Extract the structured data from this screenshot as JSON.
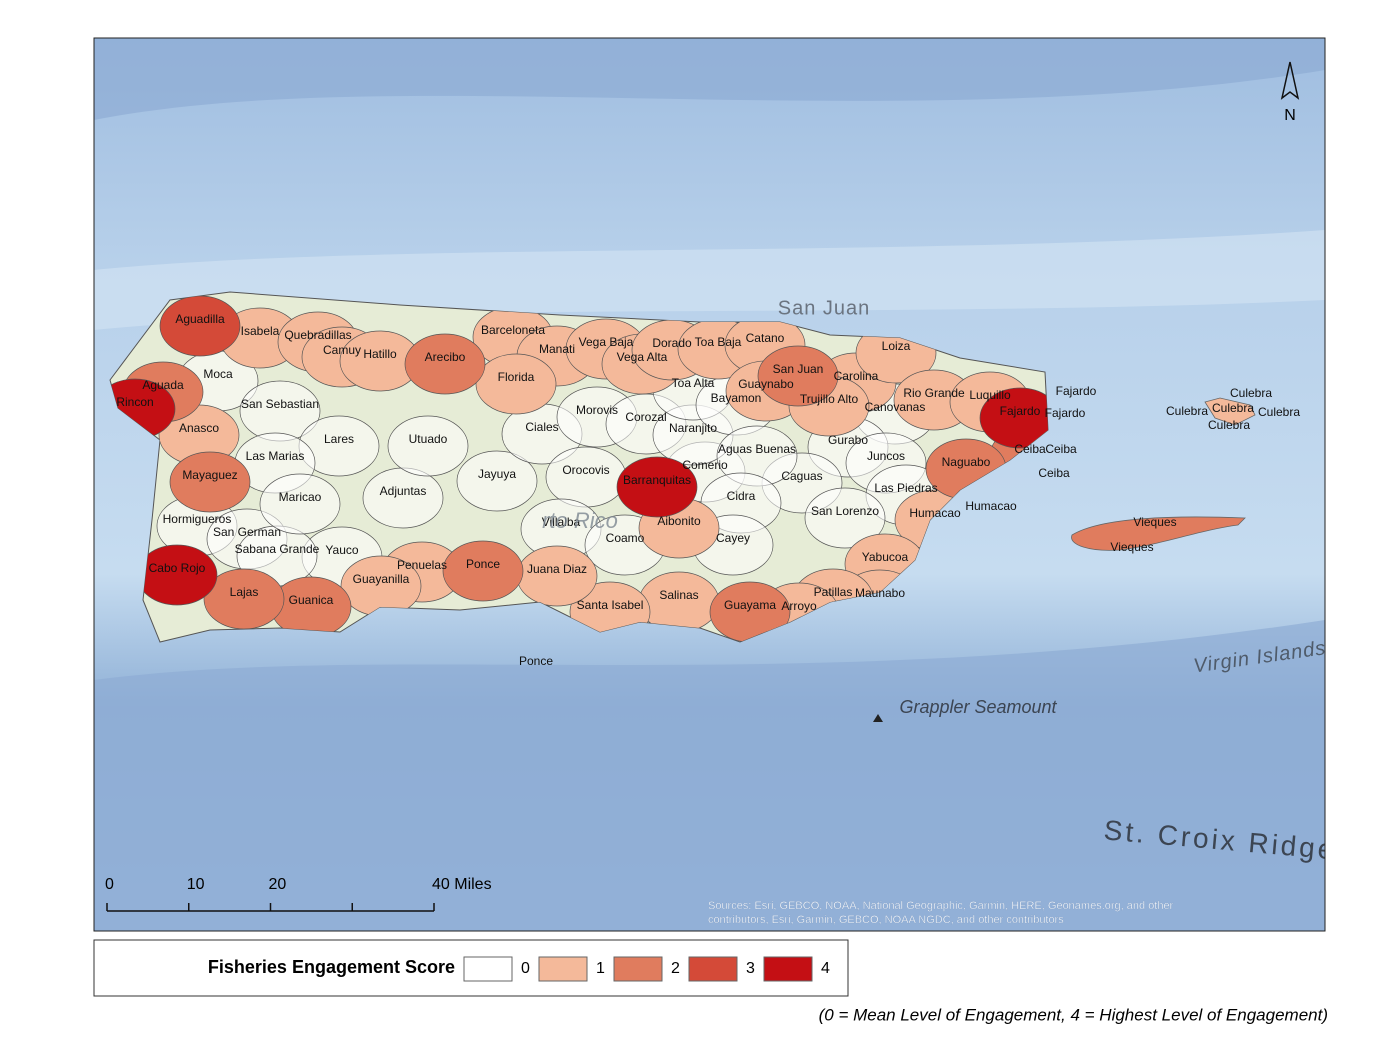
{
  "map": {
    "north_label": "N",
    "municipalities": [
      {
        "name": "Aguadilla",
        "score": 3
      },
      {
        "name": "Isabela",
        "score": 1
      },
      {
        "name": "Quebradillas",
        "score": 1
      },
      {
        "name": "Camuy",
        "score": 1
      },
      {
        "name": "Hatillo",
        "score": 1
      },
      {
        "name": "Arecibo",
        "score": 2
      },
      {
        "name": "Barceloneta",
        "score": 1
      },
      {
        "name": "Manati",
        "score": 1
      },
      {
        "name": "Vega Baja",
        "score": 1
      },
      {
        "name": "Vega Alta",
        "score": 1
      },
      {
        "name": "Dorado",
        "score": 1
      },
      {
        "name": "Toa Baja",
        "score": 1
      },
      {
        "name": "Catano",
        "score": 1
      },
      {
        "name": "San Juan",
        "score": 2
      },
      {
        "name": "Carolina",
        "score": 1
      },
      {
        "name": "Loiza",
        "score": 1
      },
      {
        "name": "Rio Grande",
        "score": 1
      },
      {
        "name": "Luquillo",
        "score": 1
      },
      {
        "name": "Fajardo",
        "score": 4
      },
      {
        "name": "Ceiba",
        "score": 2
      },
      {
        "name": "Naguabo",
        "score": 2
      },
      {
        "name": "Humacao",
        "score": 1
      },
      {
        "name": "Yabucoa",
        "score": 1
      },
      {
        "name": "Maunabo",
        "score": 1
      },
      {
        "name": "Patillas",
        "score": 1
      },
      {
        "name": "Arroyo",
        "score": 1
      },
      {
        "name": "Guayama",
        "score": 2
      },
      {
        "name": "Salinas",
        "score": 1
      },
      {
        "name": "Santa Isabel",
        "score": 1
      },
      {
        "name": "Juana Diaz",
        "score": 1
      },
      {
        "name": "Ponce",
        "score": 2
      },
      {
        "name": "Penuelas",
        "score": 1
      },
      {
        "name": "Guayanilla",
        "score": 1
      },
      {
        "name": "Yauco",
        "score": 0
      },
      {
        "name": "Guanica",
        "score": 2
      },
      {
        "name": "Lajas",
        "score": 2
      },
      {
        "name": "Cabo Rojo",
        "score": 4
      },
      {
        "name": "Hormigueros",
        "score": 0
      },
      {
        "name": "San German",
        "score": 0
      },
      {
        "name": "Sabana Grande",
        "score": 0
      },
      {
        "name": "Mayaguez",
        "score": 2
      },
      {
        "name": "Anasco",
        "score": 1
      },
      {
        "name": "Rincon",
        "score": 4
      },
      {
        "name": "Aguada",
        "score": 2
      },
      {
        "name": "Moca",
        "score": 0
      },
      {
        "name": "San Sebastian",
        "score": 0
      },
      {
        "name": "Lares",
        "score": 0
      },
      {
        "name": "Las Marias",
        "score": 0
      },
      {
        "name": "Maricao",
        "score": 0
      },
      {
        "name": "Adjuntas",
        "score": 0
      },
      {
        "name": "Utuado",
        "score": 0
      },
      {
        "name": "Jayuya",
        "score": 0
      },
      {
        "name": "Ciales",
        "score": 0
      },
      {
        "name": "Florida",
        "score": 1
      },
      {
        "name": "Morovis",
        "score": 0
      },
      {
        "name": "Orocovis",
        "score": 0
      },
      {
        "name": "Villalba",
        "score": 0
      },
      {
        "name": "Coamo",
        "score": 0
      },
      {
        "name": "Barranquitas",
        "score": 4
      },
      {
        "name": "Aibonito",
        "score": 1
      },
      {
        "name": "Comerio",
        "score": 0
      },
      {
        "name": "Corozal",
        "score": 0
      },
      {
        "name": "Naranjito",
        "score": 0
      },
      {
        "name": "Toa Alta",
        "score": 0
      },
      {
        "name": "Bayamon",
        "score": 0
      },
      {
        "name": "Guaynabo",
        "score": 1
      },
      {
        "name": "Trujillo Alto",
        "score": 1
      },
      {
        "name": "Canovanas",
        "score": 0
      },
      {
        "name": "Gurabo",
        "score": 0
      },
      {
        "name": "Juncos",
        "score": 0
      },
      {
        "name": "Las Piedras",
        "score": 0
      },
      {
        "name": "Caguas",
        "score": 0
      },
      {
        "name": "Aguas Buenas",
        "score": 0
      },
      {
        "name": "Cidra",
        "score": 0
      },
      {
        "name": "Cayey",
        "score": 0
      },
      {
        "name": "San Lorenzo",
        "score": 0
      },
      {
        "name": "Vieques",
        "score": 2
      },
      {
        "name": "Culebra",
        "score": 1
      }
    ],
    "place_labels": [
      "Fajardo",
      "Fajardo",
      "Ceiba",
      "Ceiba",
      "Culebra",
      "Culebra",
      "Culebra",
      "Culebra",
      "Vieques",
      "Ponce",
      "Humacao"
    ],
    "basemap_labels": [
      "San Juan",
      "rto Rico",
      "Virgin Islands",
      "Grappler Seamount",
      "St. Croix Ridge"
    ],
    "scale_bar": {
      "ticks": [
        0,
        10,
        20,
        {
          "value": 40,
          "label": "40 Miles"
        }
      ]
    },
    "sources": [
      "Sources: Esri, GEBCO, NOAA, National Geographic, Garmin, HERE, Geonames.org, and other",
      "contributors, Esri, Garmin, GEBCO, NOAA NGDC, and other contributors"
    ],
    "legend": {
      "title": "Fisheries Engagement Score",
      "classes": [
        {
          "value": 0,
          "color": "#ffffff"
        },
        {
          "value": 1,
          "color": "#f4b99a"
        },
        {
          "value": 2,
          "color": "#e07c5e"
        },
        {
          "value": 3,
          "color": "#d44a38"
        },
        {
          "value": 4,
          "color": "#c40f14"
        }
      ]
    },
    "note": "(0 = Mean Level of Engagement, 4 = Highest Level of Engagement)"
  }
}
